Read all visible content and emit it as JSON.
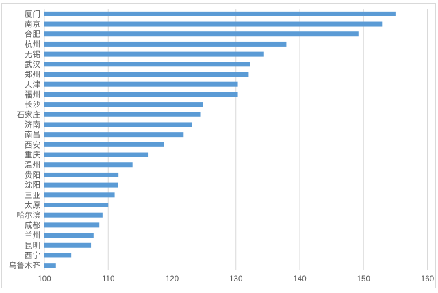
{
  "chart_data": {
    "type": "bar",
    "orientation": "horizontal",
    "title": "",
    "xlabel": "",
    "ylabel": "",
    "categories": [
      "厦门",
      "南京",
      "合肥",
      "杭州",
      "无锡",
      "武汉",
      "郑州",
      "天津",
      "福州",
      "长沙",
      "石家庄",
      "济南",
      "南昌",
      "西安",
      "重庆",
      "温州",
      "贵阳",
      "沈阳",
      "三亚",
      "太原",
      "哈尔滨",
      "成都",
      "兰州",
      "昆明",
      "西宁",
      "乌鲁木齐"
    ],
    "values": [
      155.0,
      152.9,
      149.2,
      137.9,
      134.4,
      132.2,
      132.0,
      130.3,
      130.3,
      124.8,
      124.4,
      123.1,
      121.8,
      118.7,
      116.2,
      113.8,
      111.6,
      111.5,
      111.0,
      110.0,
      109.1,
      108.6,
      107.7,
      107.3,
      104.2,
      101.8
    ],
    "xlim": [
      100,
      160
    ],
    "x_ticks": [
      "100",
      "110",
      "120",
      "130",
      "140",
      "150",
      "160"
    ],
    "grid": true,
    "legend": false,
    "colors": {
      "bar": "#5B9BD5",
      "gridline": "#D9D9D9",
      "axis_text": "#595959",
      "chart_border": "#D9D9D9",
      "background": "#FFFFFF"
    }
  }
}
